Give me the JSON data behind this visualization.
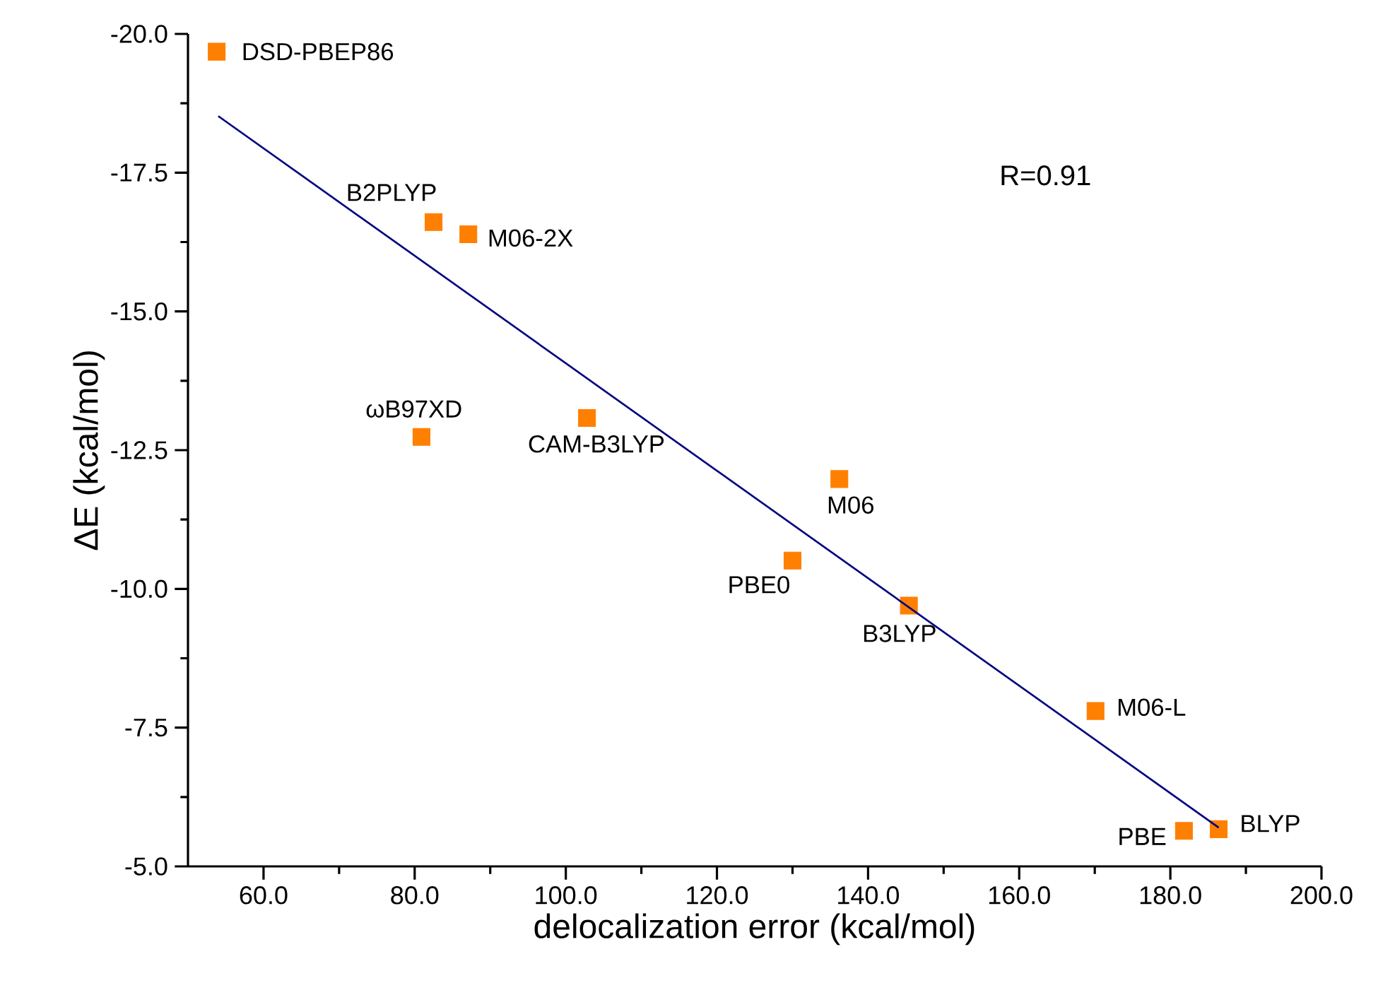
{
  "chart_data": {
    "type": "scatter",
    "xlabel": "delocalization error (kcal/mol)",
    "ylabel": "ΔE (kcal/mol)",
    "xlim": [
      50,
      200
    ],
    "ylim": [
      -5,
      -20
    ],
    "xticks": [
      {
        "value": 60,
        "label": "60.0"
      },
      {
        "value": 80,
        "label": "80.0"
      },
      {
        "value": 100,
        "label": "100.0"
      },
      {
        "value": 120,
        "label": "120.0"
      },
      {
        "value": 140,
        "label": "140.0"
      },
      {
        "value": 160,
        "label": "160.0"
      },
      {
        "value": 180,
        "label": "180.0"
      },
      {
        "value": 200,
        "label": "200.0"
      }
    ],
    "yticks": [
      {
        "value": -20,
        "label": "-20.0"
      },
      {
        "value": -17.5,
        "label": "-17.5"
      },
      {
        "value": -15,
        "label": "-15.0"
      },
      {
        "value": -12.5,
        "label": "-12.5"
      },
      {
        "value": -10,
        "label": "-10.0"
      },
      {
        "value": -7.5,
        "label": "-7.5"
      },
      {
        "value": -5,
        "label": "-5.0"
      }
    ],
    "grid": false,
    "series": [
      {
        "color": "#ff7f00",
        "marker": "square",
        "x": [
          53.8,
          82.5,
          87.1,
          80.9,
          102.8,
          136.2,
          130.0,
          145.4,
          170.1,
          181.8,
          186.4
        ],
        "values": [
          -19.68,
          -16.61,
          -16.39,
          -12.74,
          -13.08,
          -11.98,
          -10.51,
          -9.7,
          -7.8,
          -5.64,
          -5.67
        ]
      },
      {
        "type": "line",
        "color": "#000080",
        "marker": "none",
        "line_style": "solid",
        "x": [
          54.0,
          186.4
        ],
        "values": [
          -18.52,
          -5.7
        ]
      }
    ],
    "annotations": [
      "R=0.91",
      {
        "text": "DSD-PBEP86",
        "x": 53.8,
        "y": -19.68
      },
      {
        "text": "B2PLYP",
        "x": 82.5,
        "y": -16.61
      },
      {
        "text": "M06-2X",
        "x": 87.1,
        "y": -16.39
      },
      {
        "text": "ωB97XD",
        "x": 80.9,
        "y": -12.74
      },
      {
        "text": "CAM-B3LYP",
        "x": 102.8,
        "y": -13.08
      },
      {
        "text": "M06",
        "x": 136.2,
        "y": -11.98
      },
      {
        "text": "PBE0",
        "x": 130.0,
        "y": -10.51
      },
      {
        "text": "B3LYP",
        "x": 145.4,
        "y": -9.7
      },
      {
        "text": "M06-L",
        "x": 170.1,
        "y": -7.8
      },
      {
        "text": "PBE",
        "x": 181.8,
        "y": -5.64
      },
      {
        "text": "BLYP",
        "x": 186.4,
        "y": -5.67
      }
    ]
  }
}
